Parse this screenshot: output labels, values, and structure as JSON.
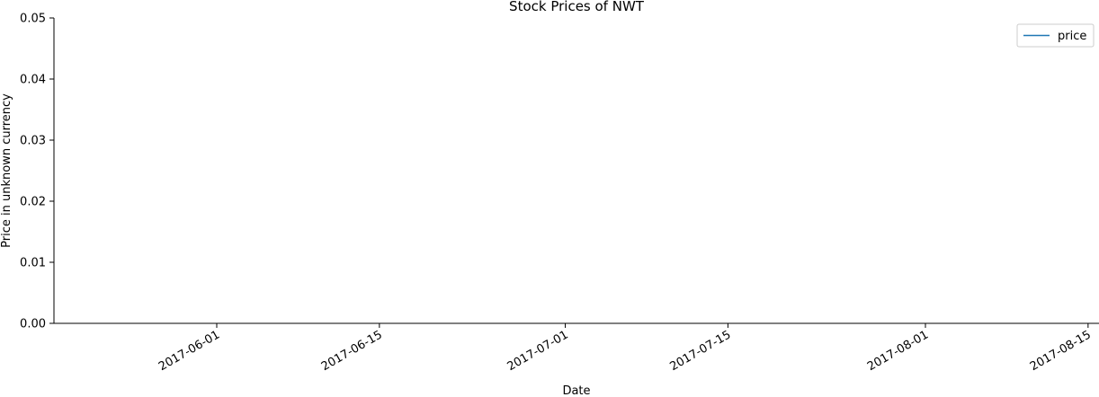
{
  "chart_data": {
    "type": "line",
    "title": "Stock Prices of NWT",
    "xlabel": "Date",
    "ylabel": "Price in unknown currency",
    "x_ticks": [
      "2017-06-01",
      "2017-06-15",
      "2017-07-01",
      "2017-07-15",
      "2017-08-01",
      "2017-08-15"
    ],
    "y_ticks": [
      "0.00",
      "0.01",
      "0.02",
      "0.03",
      "0.04",
      "0.05"
    ],
    "ylim": [
      0,
      0.05
    ],
    "series": [
      {
        "name": "price",
        "color": "#1f77b4",
        "points": []
      }
    ],
    "legend": {
      "position": "top-right",
      "labels": [
        "price"
      ]
    },
    "grid": false
  }
}
